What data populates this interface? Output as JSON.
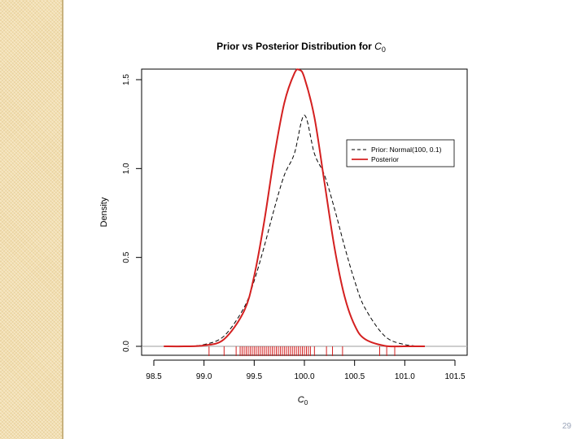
{
  "slide": {
    "page_number": "29"
  },
  "chart_data": {
    "type": "line",
    "title": "Prior vs Posterior Distribution for ",
    "title_var": "C",
    "title_sub": "0",
    "xlabel": "C",
    "xlabel_sub": "0",
    "ylabel": "Density",
    "xlim": [
      98.5,
      101.5
    ],
    "ylim": [
      0,
      1.5
    ],
    "x_ticks": [
      "98.5",
      "99.0",
      "99.5",
      "100.0",
      "100.5",
      "101.0",
      "101.5"
    ],
    "y_ticks": [
      "0.0",
      "0.5",
      "1.0",
      "1.5"
    ],
    "grid": false,
    "legend_position": "top-right",
    "series": [
      {
        "name": "Prior: Normal(100, 0.1)",
        "style": "dashed",
        "color": "#000000",
        "x": [
          98.6,
          98.8,
          99.0,
          99.2,
          99.4,
          99.5,
          99.6,
          99.7,
          99.8,
          99.9,
          100.0,
          100.1,
          100.2,
          100.3,
          100.4,
          100.5,
          100.6,
          100.8,
          101.0,
          101.2
        ],
        "y": [
          0.0,
          0.001,
          0.01,
          0.058,
          0.219,
          0.369,
          0.562,
          0.774,
          0.963,
          1.084,
          1.3,
          1.084,
          0.963,
          0.774,
          0.562,
          0.369,
          0.219,
          0.058,
          0.01,
          0.0
        ]
      },
      {
        "name": "Posterior",
        "style": "solid",
        "color": "#d42020",
        "x": [
          98.6,
          98.8,
          99.0,
          99.2,
          99.4,
          99.5,
          99.6,
          99.7,
          99.8,
          99.9,
          99.95,
          100.0,
          100.1,
          100.2,
          100.3,
          100.4,
          100.5,
          100.6,
          100.8,
          101.0,
          101.2
        ],
        "y": [
          0.0,
          0.0,
          0.005,
          0.04,
          0.2,
          0.396,
          0.703,
          1.07,
          1.369,
          1.535,
          1.555,
          1.511,
          1.288,
          0.922,
          0.555,
          0.281,
          0.119,
          0.042,
          0.003,
          0.0,
          0.0
        ]
      }
    ],
    "rug": [
      99.05,
      99.2,
      99.32,
      99.36,
      99.38,
      99.4,
      99.42,
      99.44,
      99.46,
      99.48,
      99.5,
      99.52,
      99.54,
      99.56,
      99.58,
      99.6,
      99.62,
      99.64,
      99.66,
      99.68,
      99.7,
      99.72,
      99.74,
      99.76,
      99.78,
      99.8,
      99.82,
      99.84,
      99.86,
      99.88,
      99.9,
      99.92,
      99.94,
      99.96,
      99.98,
      100.0,
      100.02,
      100.04,
      100.06,
      100.1,
      100.22,
      100.28,
      100.38,
      100.75,
      100.82,
      100.9
    ],
    "rug_color": "#d42020",
    "baseline_color": "#b0b0b0"
  }
}
